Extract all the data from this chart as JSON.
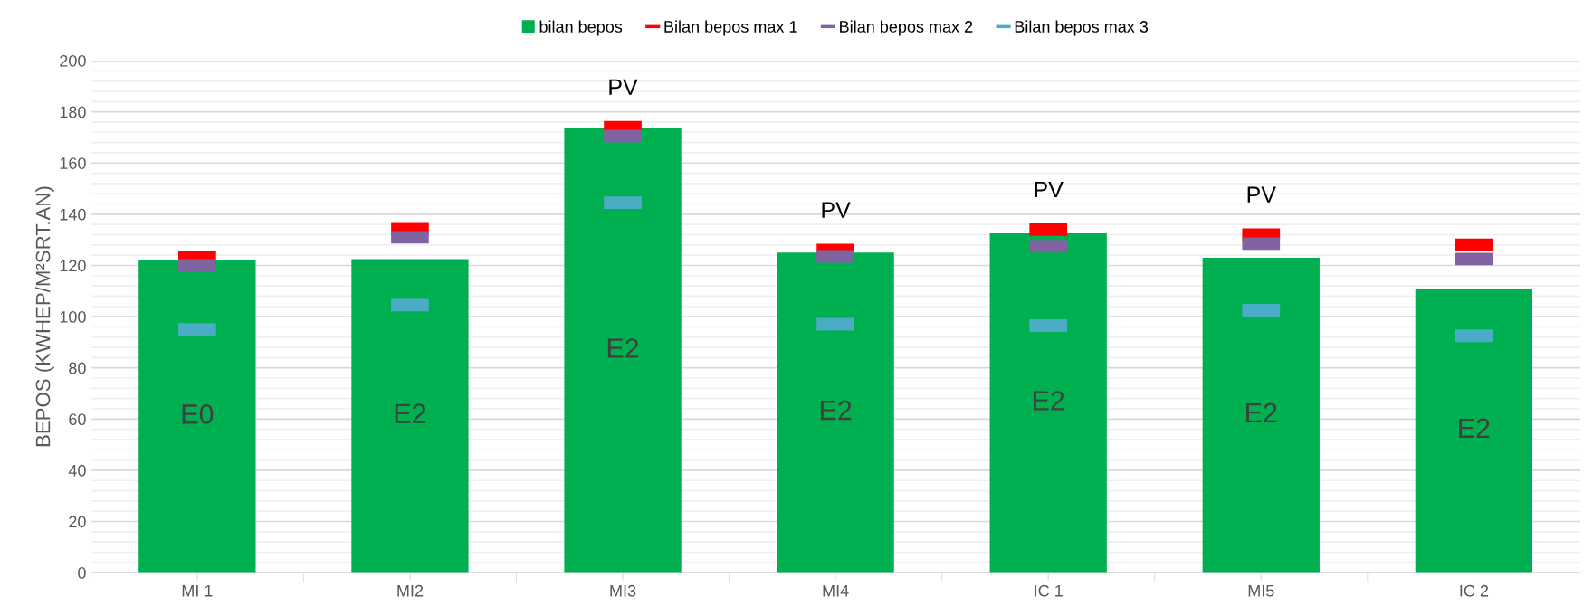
{
  "chart_data": {
    "type": "bar",
    "ylabel": "BEPOS (KWHEP/M²SRT.AN)",
    "categories": [
      "MI 1",
      "MI2",
      "MI3",
      "MI4",
      "IC 1",
      "MI5",
      "IC 2"
    ],
    "series": [
      {
        "name": "bilan bepos",
        "color": "#00b050",
        "values": [
          122,
          122.5,
          173.5,
          125,
          132.5,
          123,
          111
        ],
        "value_labels": [
          "E0",
          "E2",
          "E2",
          "E2",
          "E2",
          "E2",
          "E2"
        ]
      },
      {
        "name": "Bilan bepos max 1",
        "type": "scatter",
        "color": "#ff0000",
        "values": [
          123,
          134.5,
          174,
          126,
          134,
          132,
          128
        ],
        "value_labels": [
          null,
          null,
          "PV",
          "PV",
          "PV",
          "PV",
          null
        ]
      },
      {
        "name": "Bilan bepos max 2",
        "type": "scatter",
        "color": "#8064a2",
        "values": [
          120,
          131,
          170.5,
          123.5,
          127.5,
          128.5,
          122.5
        ]
      },
      {
        "name": "Bilan bepos max 3",
        "type": "scatter",
        "color": "#4bacc6",
        "values": [
          95,
          104.5,
          144.5,
          97,
          96.5,
          102.5,
          92.5
        ]
      }
    ],
    "ylim": [
      0,
      200
    ],
    "yticks": [
      0,
      20,
      40,
      60,
      80,
      100,
      120,
      140,
      160,
      180,
      200
    ],
    "grid": "y",
    "legend": "top"
  }
}
